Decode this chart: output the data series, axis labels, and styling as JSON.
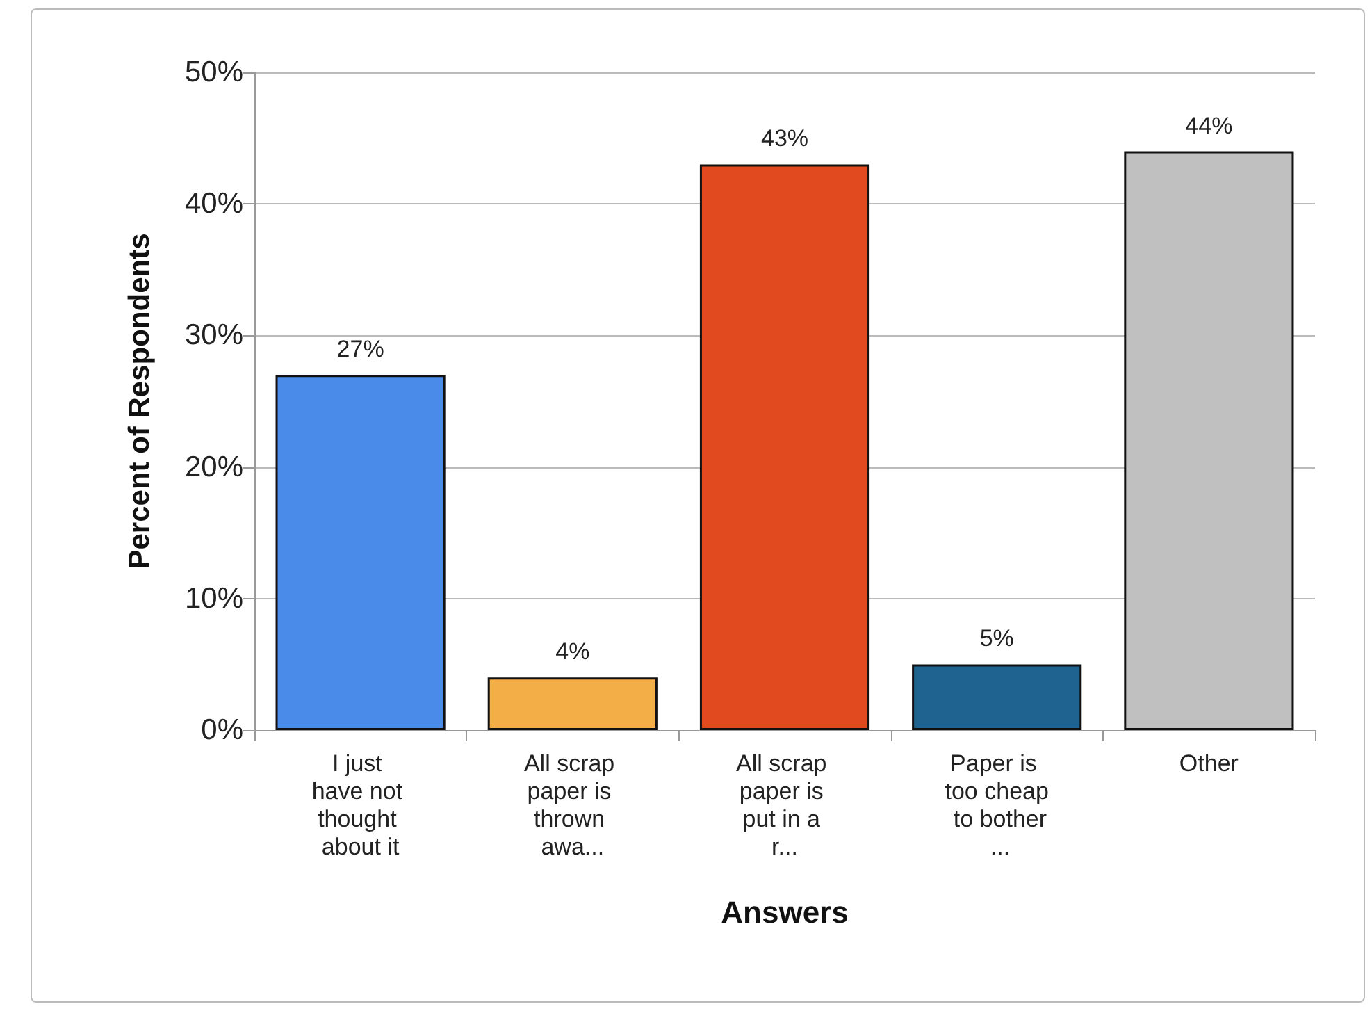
{
  "chart_data": {
    "type": "bar",
    "xlabel": "Answers",
    "ylabel": "Percent of Respondents",
    "categories": [
      "I just have not thought about it",
      "All scrap paper is thrown awa...",
      "All scrap paper is put in a r...",
      "Paper is too cheap to bother ...",
      "Other"
    ],
    "values": [
      27,
      4,
      43,
      5,
      44
    ],
    "value_labels": [
      "27%",
      "4%",
      "43%",
      "5%",
      "44%"
    ],
    "colors": [
      "#4a8bea",
      "#f4ae48",
      "#e04a1e",
      "#1f6390",
      "#c0c0c0"
    ],
    "ylim": [
      0,
      50
    ],
    "yticks": [
      {
        "value": 0,
        "label": "0%"
      },
      {
        "value": 10,
        "label": "10%"
      },
      {
        "value": 20,
        "label": "20%"
      },
      {
        "value": 30,
        "label": "30%"
      },
      {
        "value": 40,
        "label": "40%"
      },
      {
        "value": 50,
        "label": "50%"
      }
    ],
    "grid": "y"
  }
}
